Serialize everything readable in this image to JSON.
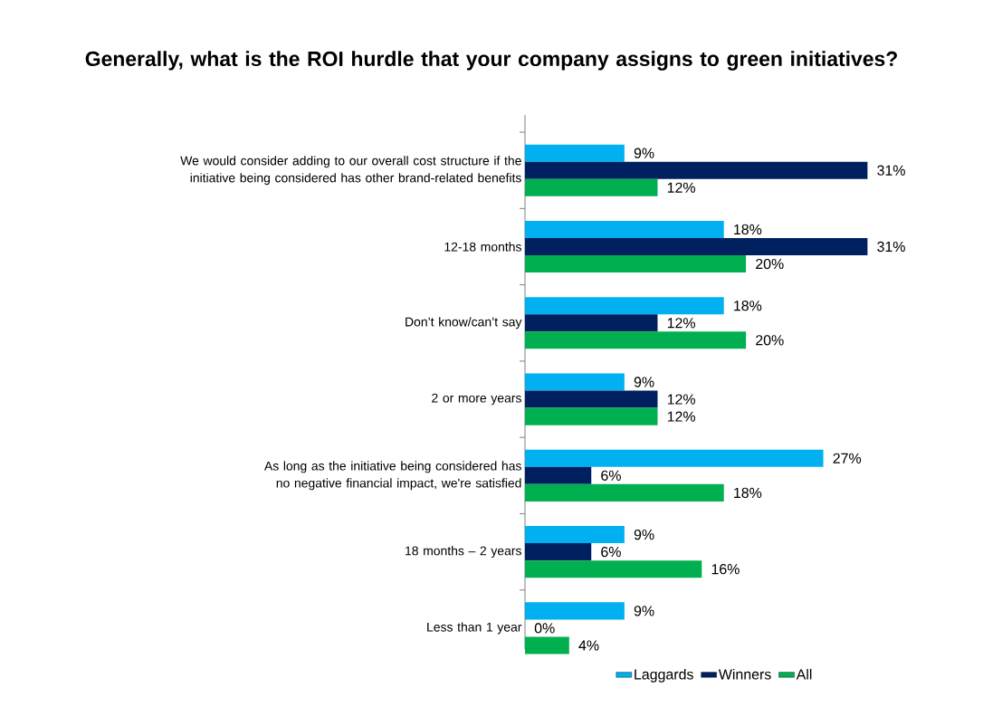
{
  "chart_data": {
    "type": "bar",
    "orientation": "horizontal",
    "title": "Generally, what is the ROI hurdle that your company assigns to green initiatives?",
    "categories": [
      "We would consider adding to our overall cost structure if the initiative being considered has other brand-related benefits",
      "12-18 months",
      "Don’t know/can’t say",
      "2 or more years",
      "As long as the initiative being considered has no negative financial impact, we're satisfied",
      "18 months – 2 years",
      "Less than 1 year"
    ],
    "series": [
      {
        "name": "Laggards",
        "color": "#00b0f0",
        "values": [
          9,
          18,
          18,
          9,
          27,
          9,
          9
        ],
        "value_labels": [
          "9%",
          "18%",
          "18%",
          "9%",
          "27%",
          "9%",
          "9%"
        ]
      },
      {
        "name": "Winners",
        "color": "#002060",
        "values": [
          31,
          31,
          12,
          12,
          6,
          6,
          0
        ],
        "value_labels": [
          "31%",
          "31%",
          "12%",
          "12%",
          "6%",
          "6%",
          "0%"
        ]
      },
      {
        "name": "All",
        "color": "#00b050",
        "values": [
          12,
          20,
          20,
          12,
          18,
          16,
          4
        ],
        "value_labels": [
          "12%",
          "20%",
          "20%",
          "12%",
          "18%",
          "16%",
          "4%"
        ]
      }
    ],
    "legend": "bottom"
  }
}
